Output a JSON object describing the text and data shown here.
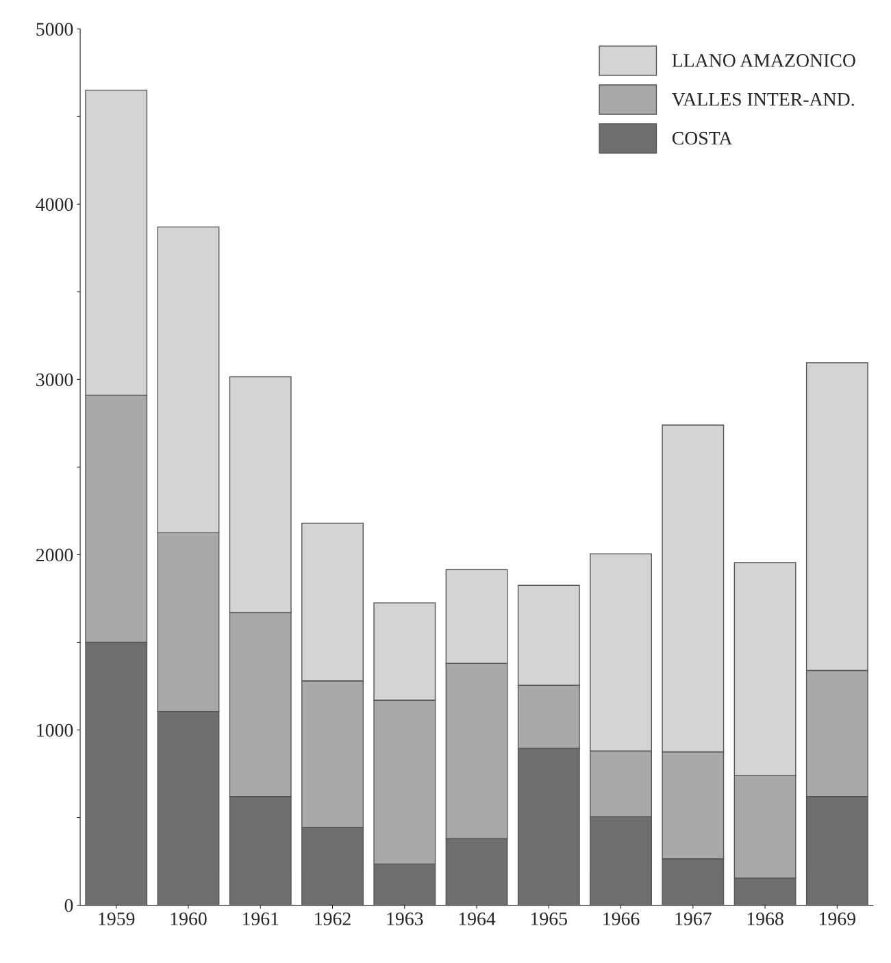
{
  "chart_data": {
    "type": "bar",
    "stacked": true,
    "categories": [
      "1959",
      "1960",
      "1961",
      "1962",
      "1963",
      "1964",
      "1965",
      "1966",
      "1967",
      "1968",
      "1969"
    ],
    "series": [
      {
        "name": "COSTA",
        "color": "#6e6e6e",
        "values": [
          1500,
          1105,
          620,
          445,
          235,
          380,
          895,
          505,
          265,
          155,
          620
        ]
      },
      {
        "name": "VALLES INTER-AND.",
        "color": "#a9a9a9",
        "values": [
          1410,
          1020,
          1050,
          835,
          935,
          1000,
          360,
          375,
          610,
          585,
          720
        ]
      },
      {
        "name": "LLANO AMAZONICO",
        "color": "#d4d4d4",
        "values": [
          1740,
          1745,
          1345,
          900,
          555,
          535,
          570,
          1125,
          1865,
          1215,
          1755
        ]
      }
    ],
    "ylim": [
      0,
      5000
    ],
    "yticks": [
      0,
      {
        "value": 500,
        "label": null
      },
      1000,
      {
        "value": 1500,
        "label": null
      },
      2000,
      {
        "value": 2500,
        "label": null
      },
      3000,
      {
        "value": 3500,
        "label": null
      },
      4000,
      {
        "value": 4500,
        "label": null
      },
      5000
    ],
    "grid": false,
    "legend": "top right"
  }
}
